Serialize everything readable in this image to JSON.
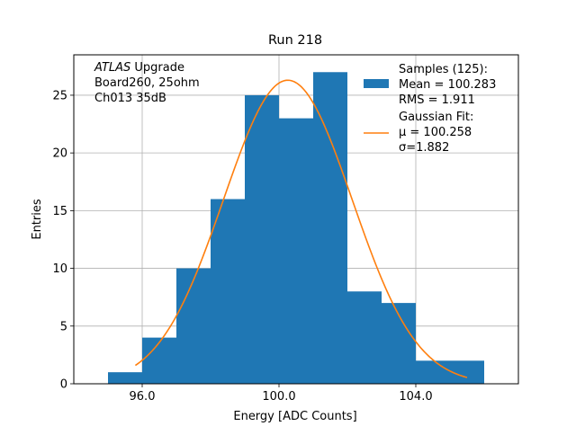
{
  "chart_data": {
    "type": "bar",
    "title": "Run 218",
    "xlabel": "Energy [ADC Counts]",
    "ylabel": "Entries",
    "xlim": [
      94.0,
      107.0
    ],
    "ylim": [
      0,
      28.5
    ],
    "xticks": [
      96.0,
      100.0,
      104.0
    ],
    "xtick_labels": [
      "96.0",
      "100.0",
      "104.0"
    ],
    "yticks": [
      0,
      5,
      10,
      15,
      20,
      25
    ],
    "ytick_labels": [
      "0",
      "5",
      "10",
      "15",
      "20",
      "25"
    ],
    "grid": true,
    "histogram": {
      "color": "#1f77b4",
      "bins": [
        {
          "x0": 95.0,
          "x1": 96.0,
          "count": 1
        },
        {
          "x0": 96.0,
          "x1": 97.0,
          "count": 4
        },
        {
          "x0": 97.0,
          "x1": 98.0,
          "count": 10
        },
        {
          "x0": 98.0,
          "x1": 99.0,
          "count": 16
        },
        {
          "x0": 99.0,
          "x1": 100.0,
          "count": 25
        },
        {
          "x0": 100.0,
          "x1": 101.0,
          "count": 23
        },
        {
          "x0": 101.0,
          "x1": 102.0,
          "count": 27
        },
        {
          "x0": 102.0,
          "x1": 103.0,
          "count": 8
        },
        {
          "x0": 103.0,
          "x1": 104.0,
          "count": 7
        },
        {
          "x0": 104.0,
          "x1": 105.0,
          "count": 2
        },
        {
          "x0": 105.0,
          "x1": 106.0,
          "count": 2
        }
      ]
    },
    "fit": {
      "color": "#ff7f0e",
      "mu": 100.258,
      "sigma": 1.882,
      "amplitude": 26.3,
      "x_range": [
        95.8,
        105.5
      ]
    },
    "annotation_lines": [
      {
        "italic": "ATLAS",
        "rest": " Upgrade"
      },
      {
        "italic": "",
        "rest": " Board260, 25ohm"
      },
      {
        "italic": "",
        "rest": " Ch013 35dB"
      }
    ],
    "legend": {
      "position": "top-right",
      "hist_lines": [
        "Samples (125):",
        " Mean = 100.283",
        " RMS = 1.911"
      ],
      "fit_lines": [
        "Gaussian Fit:",
        " μ = 100.258",
        " σ=1.882"
      ]
    }
  }
}
